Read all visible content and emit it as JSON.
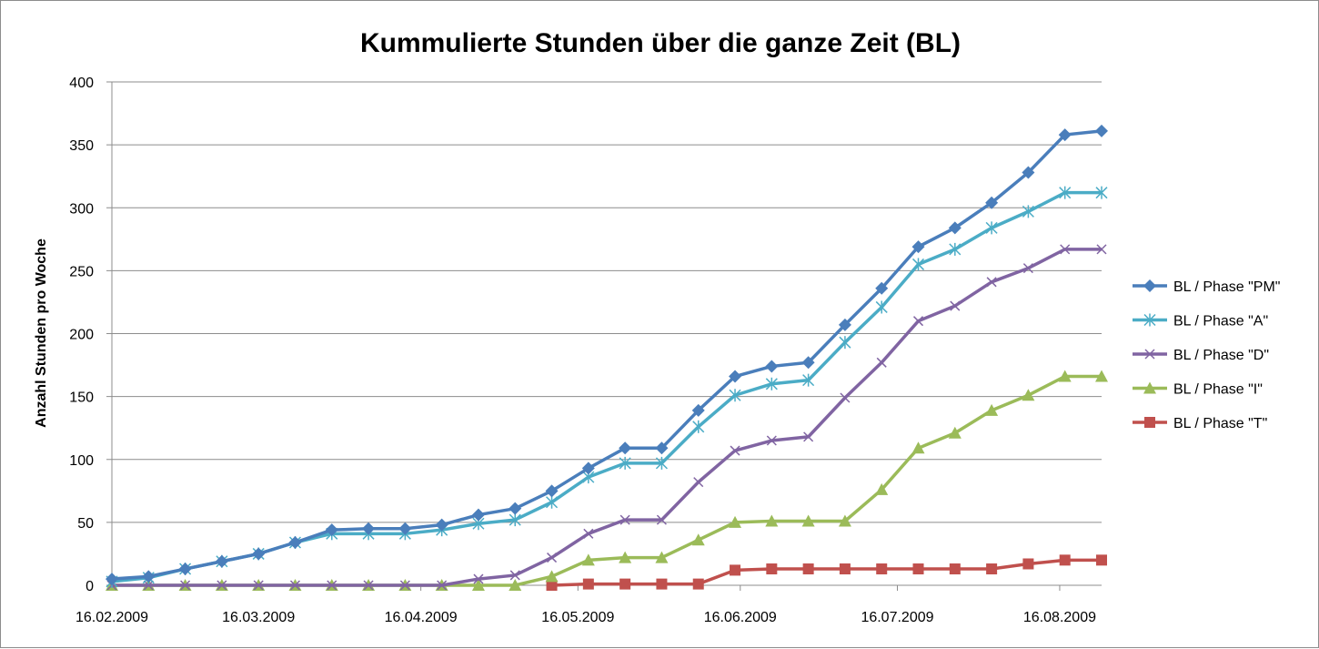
{
  "chart_data": {
    "type": "line",
    "title": "Kummulierte Stunden über die ganze Zeit (BL)",
    "ylabel": "Anzahl Stunden pro Woche",
    "xlabel": "",
    "ylim": [
      0,
      400
    ],
    "y_ticks": [
      "0",
      "50",
      "100",
      "150",
      "200",
      "250",
      "300",
      "350",
      "400"
    ],
    "x_tick_labels": [
      "16.02.2009",
      "16.03.2009",
      "16.04.2009",
      "16.05.2009",
      "16.06.2009",
      "16.07.2009",
      "16.08.2009"
    ],
    "x": [
      "16.02.2009",
      "23.02.2009",
      "02.03.2009",
      "09.03.2009",
      "16.03.2009",
      "23.03.2009",
      "30.03.2009",
      "06.04.2009",
      "13.04.2009",
      "20.04.2009",
      "27.04.2009",
      "04.05.2009",
      "11.05.2009",
      "18.05.2009",
      "25.05.2009",
      "01.06.2009",
      "08.06.2009",
      "15.06.2009",
      "22.06.2009",
      "29.06.2009",
      "06.07.2009",
      "13.07.2009",
      "20.07.2009",
      "27.07.2009",
      "03.08.2009",
      "10.08.2009",
      "17.08.2009",
      "24.08.2009"
    ],
    "grid": "horizontal",
    "legend_position": "right",
    "series": [
      {
        "name": "BL / Phase \"PM\"",
        "color": "#4a7ebb",
        "marker": "diamond",
        "values": [
          5,
          7,
          13,
          19,
          25,
          34,
          44,
          45,
          45,
          48,
          56,
          61,
          75,
          93,
          109,
          109,
          139,
          166,
          174,
          177,
          207,
          236,
          269,
          284,
          304,
          328,
          358,
          361
        ]
      },
      {
        "name": "BL / Phase \"A\"",
        "color": "#4bacc6",
        "marker": "star",
        "values": [
          3,
          6,
          13,
          19,
          25,
          34,
          41,
          41,
          41,
          44,
          49,
          52,
          66,
          86,
          97,
          97,
          126,
          151,
          160,
          163,
          193,
          221,
          255,
          267,
          284,
          297,
          312,
          312
        ]
      },
      {
        "name": "BL / Phase \"D\"",
        "color": "#8064a2",
        "marker": "x",
        "values": [
          0,
          0,
          0,
          0,
          0,
          0,
          0,
          0,
          0,
          0,
          5,
          8,
          22,
          41,
          52,
          52,
          82,
          107,
          115,
          118,
          149,
          177,
          210,
          222,
          241,
          252,
          267,
          267
        ]
      },
      {
        "name": "BL / Phase \"I\"",
        "color": "#9bbb59",
        "marker": "triangle",
        "values": [
          0,
          0,
          0,
          0,
          0,
          0,
          0,
          0,
          0,
          0,
          0,
          0,
          7,
          20,
          22,
          22,
          36,
          50,
          51,
          51,
          51,
          76,
          109,
          121,
          139,
          151,
          166,
          166
        ]
      },
      {
        "name": "BL / Phase \"T\"",
        "color": "#c0504d",
        "marker": "square",
        "values": [
          null,
          null,
          null,
          null,
          null,
          null,
          null,
          null,
          null,
          null,
          null,
          null,
          0,
          1,
          1,
          1,
          1,
          12,
          13,
          13,
          13,
          13,
          13,
          13,
          13,
          17,
          20,
          20
        ]
      }
    ]
  }
}
